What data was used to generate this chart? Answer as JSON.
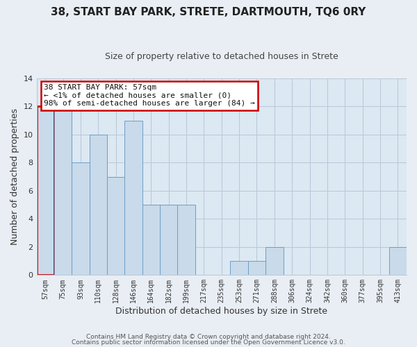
{
  "title": "38, START BAY PARK, STRETE, DARTMOUTH, TQ6 0RY",
  "subtitle": "Size of property relative to detached houses in Strete",
  "xlabel": "Distribution of detached houses by size in Strete",
  "ylabel": "Number of detached properties",
  "bar_labels": [
    "57sqm",
    "75sqm",
    "93sqm",
    "110sqm",
    "128sqm",
    "146sqm",
    "164sqm",
    "182sqm",
    "199sqm",
    "217sqm",
    "235sqm",
    "253sqm",
    "271sqm",
    "288sqm",
    "306sqm",
    "324sqm",
    "342sqm",
    "360sqm",
    "377sqm",
    "395sqm",
    "413sqm"
  ],
  "bar_values": [
    12,
    12,
    8,
    10,
    7,
    11,
    5,
    5,
    5,
    0,
    0,
    1,
    1,
    2,
    0,
    0,
    0,
    0,
    0,
    0,
    2
  ],
  "bar_color": "#c9daea",
  "bar_edge_color": "#6b9ec8",
  "highlight_index": 0,
  "highlight_edge_color": "#cc0000",
  "ylim": [
    0,
    14
  ],
  "yticks": [
    0,
    2,
    4,
    6,
    8,
    10,
    12,
    14
  ],
  "annotation_text": "38 START BAY PARK: 57sqm\n← <1% of detached houses are smaller (0)\n98% of semi-detached houses are larger (84) →",
  "annotation_box_edge": "#cc0000",
  "footer_line1": "Contains HM Land Registry data © Crown copyright and database right 2024.",
  "footer_line2": "Contains public sector information licensed under the Open Government Licence v3.0.",
  "background_color": "#e8eef4",
  "plot_background_color": "#dce8f2",
  "grid_color": "#b8c8d8",
  "title_color": "#222222",
  "subtitle_color": "#444444",
  "label_color": "#333333",
  "tick_color": "#333333",
  "footer_color": "#555555"
}
